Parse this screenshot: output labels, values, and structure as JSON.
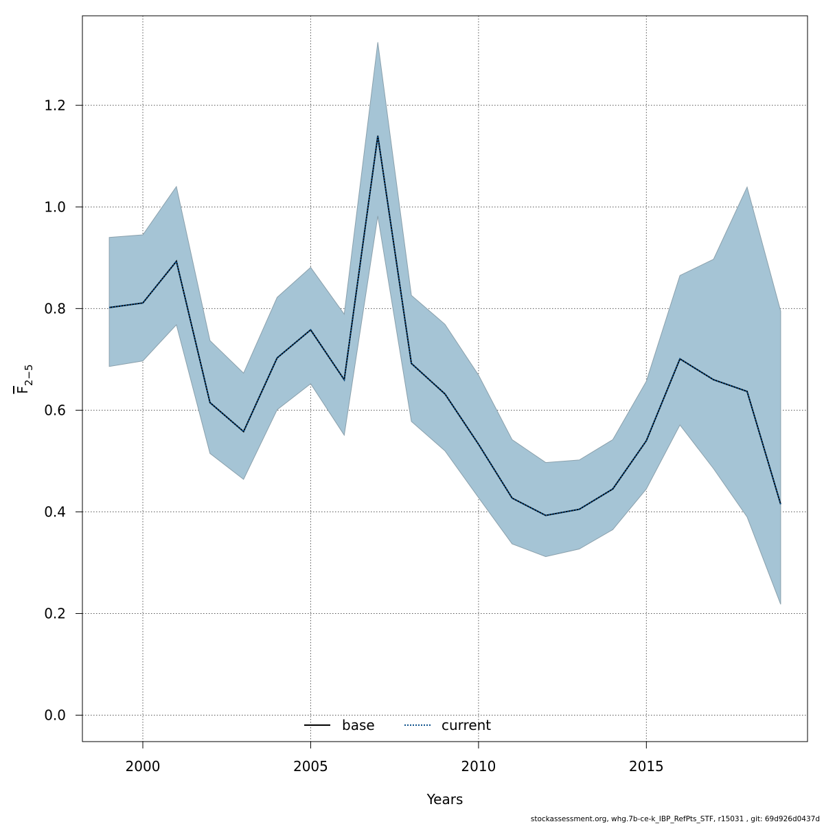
{
  "chart_data": {
    "type": "line",
    "x": [
      1999,
      2000,
      2001,
      2002,
      2003,
      2004,
      2005,
      2006,
      2007,
      2008,
      2009,
      2010,
      2011,
      2012,
      2013,
      2014,
      2015,
      2016,
      2017,
      2018,
      2019
    ],
    "series": [
      {
        "name": "base",
        "style": "solid",
        "color": "#000000",
        "values": [
          0.802,
          0.811,
          0.893,
          0.615,
          0.558,
          0.703,
          0.758,
          0.66,
          1.14,
          0.692,
          0.632,
          0.533,
          0.427,
          0.393,
          0.405,
          0.445,
          0.54,
          0.701,
          0.66,
          0.637,
          0.415
        ]
      },
      {
        "name": "current",
        "style": "dotted",
        "color": "#0a4f8a",
        "values": [
          0.802,
          0.811,
          0.893,
          0.615,
          0.558,
          0.703,
          0.758,
          0.66,
          1.14,
          0.692,
          0.632,
          0.533,
          0.427,
          0.393,
          0.405,
          0.445,
          0.54,
          0.701,
          0.66,
          0.637,
          0.415
        ]
      }
    ],
    "band": {
      "color": "#a5c4d5",
      "lower": [
        0.686,
        0.697,
        0.768,
        0.515,
        0.464,
        0.601,
        0.652,
        0.551,
        0.982,
        0.578,
        0.52,
        0.428,
        0.337,
        0.312,
        0.327,
        0.365,
        0.445,
        0.571,
        0.485,
        0.39,
        0.218
      ],
      "upper": [
        0.94,
        0.945,
        1.04,
        0.737,
        0.673,
        0.822,
        0.881,
        0.789,
        1.324,
        0.826,
        0.769,
        0.669,
        0.542,
        0.497,
        0.502,
        0.542,
        0.657,
        0.865,
        0.897,
        1.039,
        0.795
      ]
    },
    "xlabel": "Years",
    "ylabel": {
      "base": "F",
      "subscript": "2−5"
    },
    "xticks": [
      2000,
      2005,
      2010,
      2015
    ],
    "yticks": [
      0.0,
      0.2,
      0.4,
      0.6,
      0.8,
      1.0,
      1.2
    ],
    "xlim": [
      1998.2,
      2019.8
    ],
    "ylim": [
      -0.052,
      1.376
    ],
    "grid": true,
    "legend_position": "bottom-center"
  },
  "footer": "stockassessment.org, whg.7b-ce-k_IBP_RefPts_STF, r15031 , git: 69d926d0437d"
}
